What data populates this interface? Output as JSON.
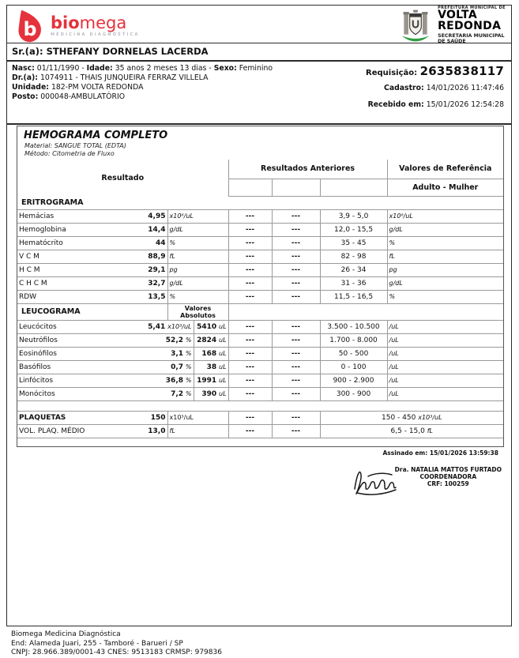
{
  "brand": {
    "name_bold": "bio",
    "name_light": "mega",
    "tagline": "MEDICINA DIAGNÓSTICA",
    "red": "#e5323c",
    "tagline_gray": "#b9bac1"
  },
  "prefeitura": {
    "line1": "PREFEITURA MUNICIPAL DE",
    "city_line1": "VOLTA",
    "city_line2": "REDONDA",
    "dept_line1": "SECRETARIA MUNICIPAL",
    "dept_line2": "DE SAÚDE",
    "crest_green": "#2f9e41"
  },
  "patient": {
    "title_label": "Sr.(a):",
    "name": "STHEFANY DORNELAS LACERDA",
    "nasc_label": "Nasc:",
    "nasc": "01/11/1990 -",
    "idade_label": "Idade:",
    "idade": "35 anos 2 meses 13 dias  -",
    "sexo_label": "Sexo:",
    "sexo": "Feminino",
    "dr_label": "Dr.(a):",
    "dr": "1074911 - THAIS JUNQUEIRA FERRAZ VILLELA",
    "unidade_label": "Unidade:",
    "unidade": "182-PM VOLTA REDONDA",
    "posto_label": "Posto:",
    "posto": "000048-AMBULATÓRIO",
    "requisicao_label": "Requisição:",
    "requisicao": "2635838117",
    "cadastro_label": "Cadastro:",
    "cadastro": "14/01/2026 11:47:46",
    "recebido_label": "Recebido em:",
    "recebido": "15/01/2026 12:54:28"
  },
  "exam": {
    "title": "HEMOGRAMA COMPLETO",
    "material_label": "Material:",
    "material": "SANGUE TOTAL (EDTA)",
    "metodo_label": "Método:",
    "metodo": "Citometria de Fluxo",
    "col_resultado": "Resultado",
    "col_anteriores": "Resultados Anteriores",
    "col_referencia": "Valores de Referência",
    "col_ref_sub": "Adulto - Mulher",
    "sections": [
      {
        "title": "ERITROGRAMA",
        "layout": "simple",
        "rows": [
          {
            "name": "Hemácias",
            "result": "4,95",
            "unit": "x10⁶/uL",
            "ant1": "---",
            "ant2": "---",
            "range": "3,9 - 5,0",
            "ref_unit": "x10⁶/uL"
          },
          {
            "name": "Hemoglobina",
            "result": "14,4",
            "unit": "g/dL",
            "ant1": "---",
            "ant2": "---",
            "range": "12,0 - 15,5",
            "ref_unit": "g/dL"
          },
          {
            "name": "Hematócrito",
            "result": "44",
            "unit": "%",
            "ant1": "---",
            "ant2": "---",
            "range": "35 - 45",
            "ref_unit": "%"
          },
          {
            "name": "V C M",
            "result": "88,9",
            "unit": "fL",
            "ant1": "---",
            "ant2": "---",
            "range": "82 - 98",
            "ref_unit": "fL"
          },
          {
            "name": "H C M",
            "result": "29,1",
            "unit": "pg",
            "ant1": "---",
            "ant2": "---",
            "range": "26 - 34",
            "ref_unit": "pg"
          },
          {
            "name": "C H C M",
            "result": "32,7",
            "unit": "g/dL",
            "ant1": "---",
            "ant2": "---",
            "range": "31 - 36",
            "ref_unit": "g/dL"
          },
          {
            "name": "RDW",
            "result": "13,5",
            "unit": "%",
            "ant1": "---",
            "ant2": "---",
            "range": "11,5 - 16,5",
            "ref_unit": "%"
          }
        ]
      },
      {
        "title": "LEUCOGRAMA",
        "layout": "abs",
        "abs_header_line1": "Valores",
        "abs_header_line2": "Absolutos",
        "rows": [
          {
            "name": "Leucócitos",
            "result": "5,41",
            "unit": "x10³/uL",
            "abs": "5410",
            "abs_unit": "uL",
            "ant1": "---",
            "ant2": "---",
            "range": "3.500 - 10.500",
            "ref_unit": "/uL"
          },
          {
            "name": "Neutrófilos",
            "result": "52,2",
            "unit": "%",
            "abs": "2824",
            "abs_unit": "uL",
            "ant1": "---",
            "ant2": "---",
            "range": "1.700 - 8.000",
            "ref_unit": "/uL"
          },
          {
            "name": "Eosinófilos",
            "result": "3,1",
            "unit": "%",
            "abs": "168",
            "abs_unit": "uL",
            "ant1": "---",
            "ant2": "---",
            "range": "50 - 500",
            "ref_unit": "/uL"
          },
          {
            "name": "Basófilos",
            "result": "0,7",
            "unit": "%",
            "abs": "38",
            "abs_unit": "uL",
            "ant1": "---",
            "ant2": "---",
            "range": "0 - 100",
            "ref_unit": "/uL"
          },
          {
            "name": "Linfócitos",
            "result": "36,8",
            "unit": "%",
            "abs": "1991",
            "abs_unit": "uL",
            "ant1": "---",
            "ant2": "---",
            "range": "900 - 2.900",
            "ref_unit": "/uL"
          },
          {
            "name": "Monócitos",
            "result": "7,2",
            "unit": "%",
            "abs": "390",
            "abs_unit": "uL",
            "ant1": "---",
            "ant2": "---",
            "range": "300 - 900",
            "ref_unit": "/uL"
          }
        ]
      },
      {
        "title": "",
        "layout": "merged",
        "spacer_before": true,
        "rows": [
          {
            "name": "PLAQUETAS",
            "name_bold": true,
            "result": "150",
            "unit": "x10³/uL",
            "unit_plain": true,
            "ant1": "---",
            "ant2": "---",
            "range": "150 - 450",
            "ref_unit": "x10³/uL"
          },
          {
            "name": "VOL. PLAQ. MÉDIO",
            "result": "13,0",
            "unit": "fL",
            "ant1": "---",
            "ant2": "---",
            "range": "6,5 - 15,0",
            "ref_unit": "fL"
          }
        ]
      }
    ]
  },
  "signature": {
    "assinado": "Assinado em: 15/01/2026 13:59:38",
    "doctor": "Dra. NATALIA MATTOS FURTADO",
    "role": "COORDENADORA",
    "crf": "CRF: 100259"
  },
  "page_footer": {
    "company": "Biomega Medicina Diagnóstica",
    "address": "End: Alameda Juari, 255 - Tamboré - Barueri / SP",
    "registry": "CNPJ: 28.966.389/0001-43 CNES: 9513183 CRMSP: 979836"
  }
}
